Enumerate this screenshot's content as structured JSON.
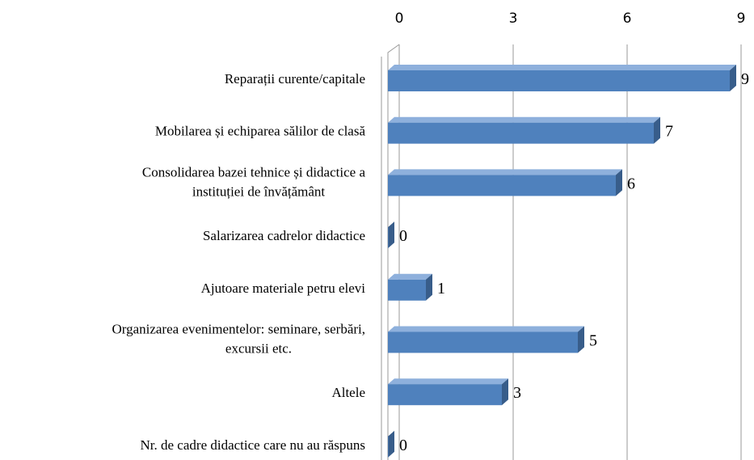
{
  "chart_data": {
    "type": "bar",
    "orientation": "horizontal",
    "categories": [
      "Reparații curente/capitale",
      "Mobilarea și echiparea sălilor de clasă",
      "Consolidarea bazei tehnice și didactice a\ninstituției de învățământ",
      "Salarizarea cadrelor didactice",
      "Ajutoare materiale petru elevi",
      "Organizarea evenimentelor: seminare, serbări,\nexcursii etc.",
      "Altele",
      "Nr. de cadre didactice care nu au răspuns"
    ],
    "values": [
      9,
      7,
      6,
      0,
      1,
      5,
      3,
      0
    ],
    "color": "#4f81bd",
    "xlim": [
      0,
      9
    ],
    "xticks": [
      0,
      3,
      6,
      9
    ],
    "grid": true
  }
}
